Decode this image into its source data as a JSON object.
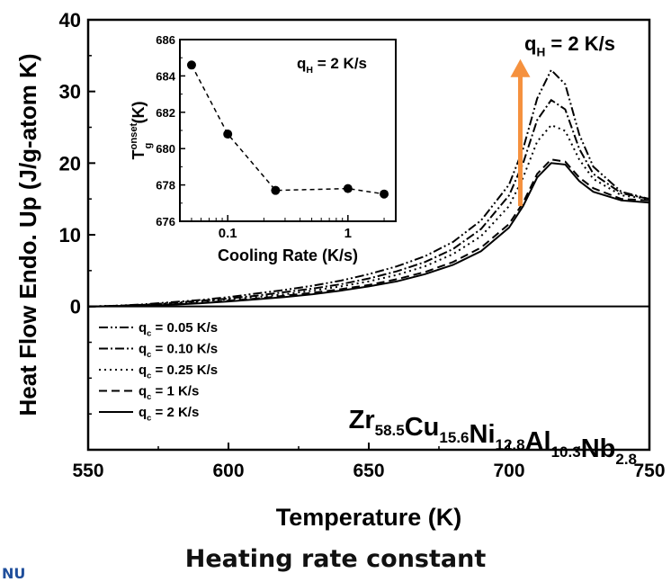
{
  "chart_data": [
    {
      "type": "line",
      "xlabel": "Temperature (K)",
      "ylabel": "Heat Flow Endo. Up (J/g-atom K)",
      "xlim": [
        550,
        750
      ],
      "ylim": [
        -20,
        40
      ],
      "xticks": [
        550,
        600,
        650,
        700,
        750
      ],
      "yticks": [
        0,
        10,
        20,
        30,
        40
      ],
      "annotation_heating_rate": "q_H = 2 K/s",
      "composition_label": "Zr58.5Cu15.6Ni12.8Al10.3Nb2.8",
      "arrow_color": "#f5913e",
      "legend_placement": "lower-left",
      "x": [
        550,
        560,
        570,
        580,
        590,
        600,
        610,
        620,
        630,
        640,
        650,
        660,
        670,
        680,
        690,
        700,
        705,
        710,
        715,
        720,
        725,
        730,
        740,
        750
      ],
      "series": [
        {
          "name": "q_c = 0.05 K/s",
          "dash": "dash-dot-dot",
          "values": [
            0,
            0.1,
            0.3,
            0.6,
            0.9,
            1.3,
            1.8,
            2.3,
            2.9,
            3.6,
            4.5,
            5.6,
            7.0,
            9.0,
            12.0,
            17.0,
            22.0,
            29.0,
            33.0,
            31.0,
            24.0,
            19.5,
            16.0,
            15.0
          ]
        },
        {
          "name": "q_c = 0.10 K/s",
          "dash": "dash-dot",
          "values": [
            0,
            0.1,
            0.25,
            0.5,
            0.8,
            1.1,
            1.5,
            2.0,
            2.5,
            3.1,
            3.9,
            4.9,
            6.2,
            8.0,
            10.8,
            15.5,
            20.0,
            26.0,
            28.8,
            27.5,
            22.0,
            18.5,
            15.8,
            15.0
          ]
        },
        {
          "name": "q_c = 0.25 K/s",
          "dash": "dot",
          "values": [
            0,
            0.1,
            0.2,
            0.4,
            0.7,
            1.0,
            1.3,
            1.7,
            2.2,
            2.8,
            3.5,
            4.4,
            5.6,
            7.3,
            9.8,
            14.0,
            18.0,
            23.0,
            25.3,
            24.5,
            20.5,
            17.8,
            15.5,
            15.0
          ]
        },
        {
          "name": "q_c = 1 K/s",
          "dash": "dash",
          "values": [
            0,
            0.05,
            0.15,
            0.3,
            0.5,
            0.8,
            1.1,
            1.5,
            1.9,
            2.4,
            3.0,
            3.8,
            4.8,
            6.2,
            8.2,
            11.5,
            14.5,
            18.5,
            20.5,
            20.2,
            18.0,
            16.5,
            15.0,
            14.8
          ]
        },
        {
          "name": "q_c = 2 K/s",
          "dash": "solid",
          "values": [
            0,
            0.05,
            0.1,
            0.25,
            0.45,
            0.7,
            1.0,
            1.3,
            1.7,
            2.2,
            2.8,
            3.5,
            4.5,
            5.8,
            7.7,
            11.0,
            14.0,
            18.0,
            20.0,
            19.8,
            17.5,
            16.0,
            14.8,
            14.5
          ]
        }
      ]
    },
    {
      "type": "line",
      "inset": true,
      "xlabel": "Cooling Rate (K/s)",
      "ylabel": "T_g^onset (K)",
      "xscale": "log",
      "xlim": [
        0.04,
        2.5
      ],
      "ylim": [
        676,
        686
      ],
      "xticks": [
        0.1,
        1
      ],
      "xtick_labels": [
        "0.1",
        "1"
      ],
      "yticks": [
        676,
        678,
        680,
        682,
        684,
        686
      ],
      "annotation": "q_H = 2 K/s",
      "x": [
        0.05,
        0.1,
        0.25,
        1,
        2
      ],
      "values": [
        684.6,
        680.8,
        677.7,
        677.8,
        677.5
      ]
    }
  ],
  "caption": "Heating rate constant",
  "corner_text": "NU"
}
